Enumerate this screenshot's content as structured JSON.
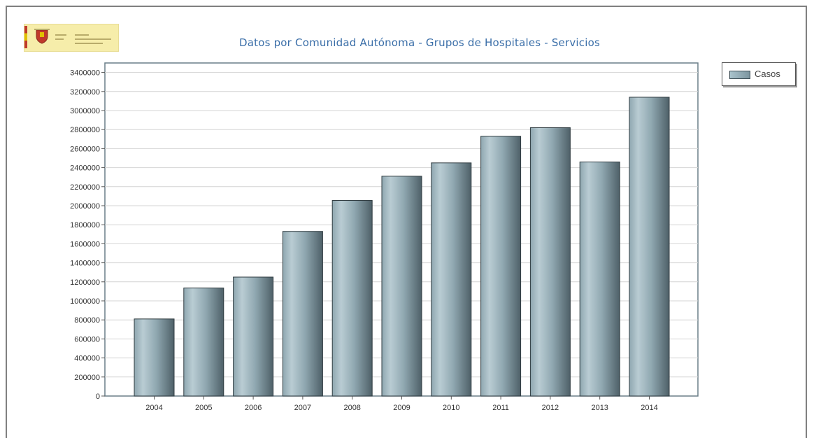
{
  "chart_data": {
    "type": "bar",
    "title": "Datos por Comunidad Autónoma - Grupos  de Hospitales - Servicios",
    "categories": [
      "2004",
      "2005",
      "2006",
      "2007",
      "2008",
      "2009",
      "2010",
      "2011",
      "2012",
      "2013",
      "2014"
    ],
    "series": [
      {
        "name": "Casos",
        "values": [
          810000,
          1135000,
          1250000,
          1730000,
          2055000,
          2310000,
          2450000,
          2730000,
          2820000,
          2460000,
          3140000
        ]
      }
    ],
    "y_ticks": [
      "0",
      "200000",
      "400000",
      "600000",
      "800000",
      "1000000",
      "1200000",
      "1400000",
      "1600000",
      "1800000",
      "2000000",
      "2200000",
      "2400000",
      "2600000",
      "2800000",
      "3000000",
      "3200000",
      "3400000"
    ],
    "ylim": [
      0,
      3500000
    ],
    "grid": true,
    "legend_position": "top-right",
    "bar_color": "#9fb6bf"
  }
}
